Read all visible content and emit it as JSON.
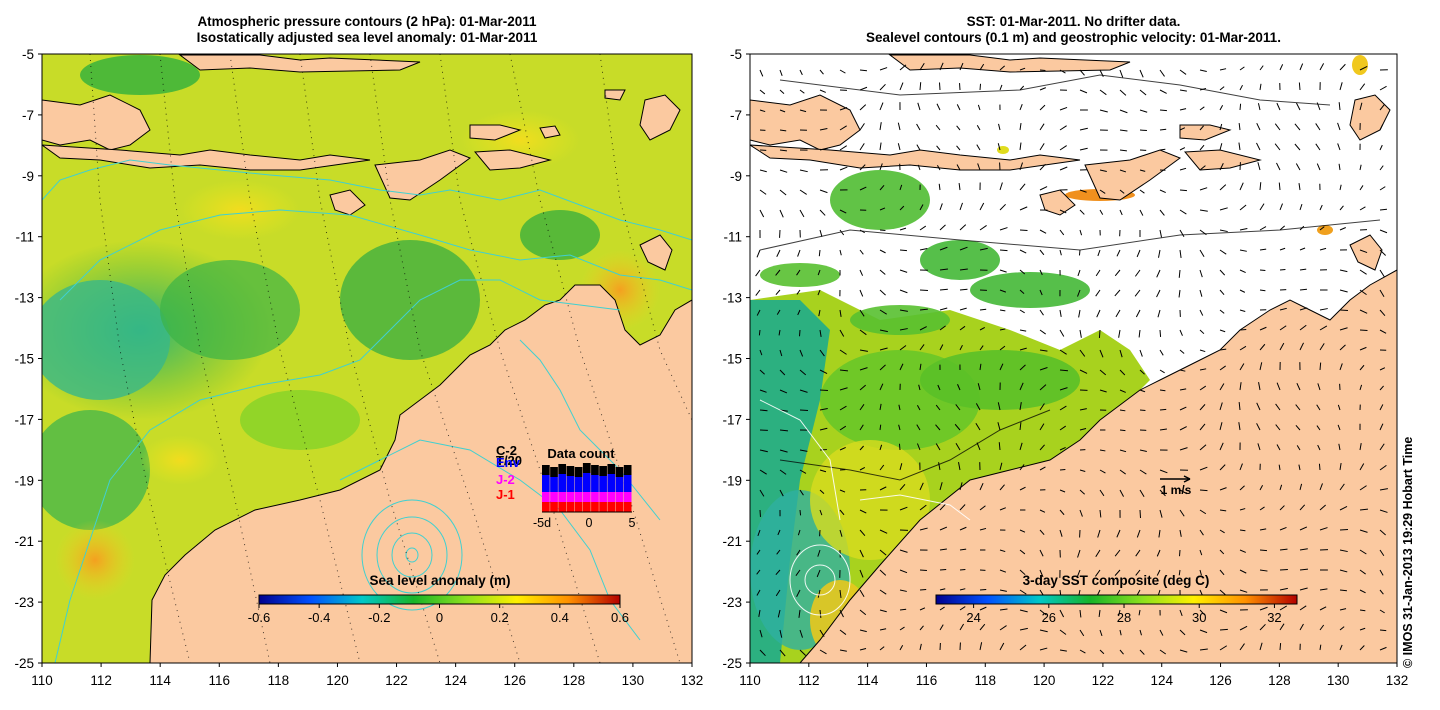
{
  "left_panel": {
    "title_line1": "Atmospheric pressure contours (2 hPa): 01-Mar-2011",
    "title_line2": "Isostatically adjusted sea level anomaly: 01-Mar-2011",
    "colorbar": {
      "label": "Sea level anomaly (m)",
      "min": -0.6,
      "max": 0.6,
      "ticks": [
        "-0.6",
        "-0.4",
        "-0.2",
        "0",
        "0.2",
        "0.4",
        "0.6"
      ],
      "colors": [
        "#00008f",
        "#0050ff",
        "#00c8c8",
        "#18b428",
        "#8ce01e",
        "#fff000",
        "#ff9000",
        "#b40000"
      ]
    },
    "satellite_legend": [
      {
        "name": "C-2",
        "color": "#000000"
      },
      {
        "name": "T/20",
        "color": "#000000"
      },
      {
        "name": "Env",
        "color": "#0000ff"
      },
      {
        "name": "J-2",
        "color": "#ff00ff"
      },
      {
        "name": "J-1",
        "color": "#ff0000"
      }
    ],
    "data_count": {
      "title": "Data count",
      "x_ticks": [
        "-5d",
        "0",
        "5"
      ]
    }
  },
  "right_panel": {
    "title_line1": "SST: 01-Mar-2011. No drifter data.",
    "title_line2": "Sealevel contours (0.1 m) and geostrophic velocity: 01-Mar-2011.",
    "colorbar": {
      "label": "3-day SST composite (deg C)",
      "min": 23,
      "max": 32.6,
      "ticks": [
        "24",
        "26",
        "28",
        "30",
        "32"
      ],
      "colors": [
        "#00008f",
        "#0050ff",
        "#00c8c8",
        "#18b428",
        "#8ce01e",
        "#fff000",
        "#ff9000",
        "#b40000"
      ]
    },
    "velocity_scale_label": "1 m/s"
  },
  "axes": {
    "longitude_ticks": [
      "110",
      "112",
      "114",
      "116",
      "118",
      "120",
      "122",
      "124",
      "126",
      "128",
      "130",
      "132"
    ],
    "latitude_ticks": [
      "-5",
      "-7",
      "-9",
      "-11",
      "-13",
      "-15",
      "-17",
      "-19",
      "-21",
      "-23",
      "-25"
    ],
    "lon_range": [
      110,
      132
    ],
    "lat_range": [
      -25,
      -5
    ]
  },
  "map_colors": {
    "land": "#fbc9a0",
    "isobath": "#40d0d0",
    "coast": "#000000",
    "cloud": "#ffffff"
  },
  "credit": "© IMOS 31-Jan-2013 19:29 Hobart Time"
}
